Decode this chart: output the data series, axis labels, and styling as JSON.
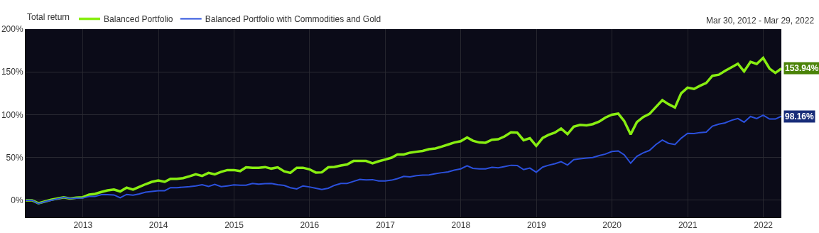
{
  "chart_data": {
    "type": "line",
    "legend_title": "Total return",
    "annotations": [
      "Mar 30, 2012 - Mar 29, 2022"
    ],
    "x": [
      "2012-03-30",
      "2012-04-30",
      "2012-05-31",
      "2012-06-30",
      "2012-07-31",
      "2012-08-31",
      "2012-09-30",
      "2012-10-31",
      "2012-11-30",
      "2012-12-31",
      "2013-01-31",
      "2013-02-28",
      "2013-03-31",
      "2013-04-30",
      "2013-05-31",
      "2013-06-30",
      "2013-07-31",
      "2013-08-31",
      "2013-09-30",
      "2013-10-31",
      "2013-11-30",
      "2013-12-31",
      "2014-01-31",
      "2014-02-28",
      "2014-03-31",
      "2014-04-30",
      "2014-05-31",
      "2014-06-30",
      "2014-07-31",
      "2014-08-31",
      "2014-09-30",
      "2014-10-31",
      "2014-11-30",
      "2014-12-31",
      "2015-01-31",
      "2015-02-28",
      "2015-03-31",
      "2015-04-30",
      "2015-05-31",
      "2015-06-30",
      "2015-07-31",
      "2015-08-31",
      "2015-09-30",
      "2015-10-31",
      "2015-11-30",
      "2015-12-31",
      "2016-01-31",
      "2016-02-29",
      "2016-03-31",
      "2016-04-30",
      "2016-05-31",
      "2016-06-30",
      "2016-07-31",
      "2016-08-31",
      "2016-09-30",
      "2016-10-31",
      "2016-11-30",
      "2016-12-31",
      "2017-01-31",
      "2017-02-28",
      "2017-03-31",
      "2017-04-30",
      "2017-05-31",
      "2017-06-30",
      "2017-07-31",
      "2017-08-31",
      "2017-09-30",
      "2017-10-31",
      "2017-11-30",
      "2017-12-31",
      "2018-01-31",
      "2018-02-28",
      "2018-03-31",
      "2018-04-30",
      "2018-05-31",
      "2018-06-30",
      "2018-07-31",
      "2018-08-31",
      "2018-09-30",
      "2018-10-31",
      "2018-11-30",
      "2018-12-31",
      "2019-01-31",
      "2019-02-28",
      "2019-03-31",
      "2019-04-30",
      "2019-05-31",
      "2019-06-30",
      "2019-07-31",
      "2019-08-31",
      "2019-09-30",
      "2019-10-31",
      "2019-11-30",
      "2019-12-31",
      "2020-01-31",
      "2020-02-29",
      "2020-03-31",
      "2020-04-30",
      "2020-05-31",
      "2020-06-30",
      "2020-07-31",
      "2020-08-31",
      "2020-09-30",
      "2020-10-31",
      "2020-11-30",
      "2020-12-31",
      "2021-01-31",
      "2021-02-28",
      "2021-03-31",
      "2021-04-30",
      "2021-05-31",
      "2021-06-30",
      "2021-07-31",
      "2021-08-31",
      "2021-09-30",
      "2021-10-31",
      "2021-11-30",
      "2021-12-31",
      "2022-01-31",
      "2022-02-28",
      "2022-03-29"
    ],
    "series": [
      {
        "name": "Balanced Portfolio",
        "color": "#88ee11",
        "values": [
          0,
          0,
          -3.5,
          -1.5,
          0.6,
          2,
          3.5,
          2,
          3,
          3.5,
          6.5,
          7.4,
          9.7,
          11.5,
          12.6,
          10.3,
          14.7,
          12.4,
          15.6,
          18.8,
          21.5,
          23.2,
          21.5,
          25,
          25,
          25.9,
          28,
          30.3,
          28.5,
          32,
          30.3,
          33.2,
          35.3,
          35.3,
          34.1,
          38.5,
          38,
          38,
          38.8,
          37,
          38.5,
          33.8,
          32,
          38,
          38,
          36.2,
          32.4,
          32.6,
          38.5,
          39,
          40.6,
          41.8,
          45.9,
          45.9,
          45.9,
          43.2,
          45.6,
          47.6,
          49.7,
          53.5,
          53.5,
          55.6,
          56.7,
          57.6,
          59.7,
          60.6,
          62.7,
          65.1,
          67.5,
          69,
          73.4,
          69.6,
          67.5,
          67.2,
          70.7,
          71.3,
          74.6,
          79.4,
          79.1,
          70.1,
          72.5,
          63.6,
          72.8,
          76.4,
          79.1,
          83.9,
          77.3,
          86,
          88.1,
          87.5,
          89,
          91.9,
          96.7,
          100,
          101.2,
          92.5,
          77,
          91.3,
          97.3,
          100.9,
          109,
          116.9,
          112.3,
          108.4,
          125,
          131.6,
          130.1,
          133.7,
          137,
          145.5,
          146.7,
          151.2,
          155.4,
          159.6,
          150.6,
          161.7,
          159.3,
          166.3,
          153.9,
          148.8,
          153.94
        ],
        "value_labels": [
          null,
          null,
          null,
          null,
          null,
          null,
          null,
          null,
          null,
          null,
          null,
          null,
          null,
          null,
          null,
          null,
          null,
          null,
          null,
          null,
          null,
          null,
          null,
          null,
          null,
          null,
          null,
          null,
          null,
          null,
          null,
          null,
          null,
          null,
          null,
          null,
          null,
          null,
          null,
          null,
          null,
          null,
          null,
          null,
          null,
          null,
          null,
          null,
          null,
          null,
          null,
          null,
          null,
          null,
          null,
          null,
          null,
          null,
          null,
          null,
          null,
          null,
          null,
          null,
          null,
          null,
          null,
          null,
          null,
          null,
          null,
          null,
          null,
          null,
          null,
          null,
          null,
          null,
          null,
          null,
          null,
          null,
          null,
          null,
          null,
          null,
          null,
          null,
          null,
          null,
          null,
          null,
          null,
          null,
          null,
          null,
          null,
          null,
          null,
          null,
          null,
          null,
          null,
          null,
          null,
          null,
          null,
          null,
          null,
          null,
          null,
          null,
          null,
          null,
          null,
          null,
          null,
          null,
          null,
          null,
          "153.94%"
        ]
      },
      {
        "name": "Balanced Portfolio with Commodities and Gold",
        "color": "#2b50dc",
        "values": [
          0,
          0,
          -4,
          -1.8,
          0,
          1.5,
          3.5,
          2,
          2.4,
          2.6,
          4.4,
          4.4,
          6.5,
          6.5,
          6.2,
          2.9,
          6.8,
          5.9,
          7.4,
          9.4,
          10.3,
          11.2,
          11.2,
          14.7,
          14.7,
          15.3,
          15.9,
          16.8,
          18.2,
          16.2,
          18.5,
          15.9,
          16.8,
          17.9,
          17.6,
          17.6,
          19.7,
          18.8,
          19.4,
          19.7,
          18.2,
          17.4,
          14.7,
          13.2,
          16.8,
          15.6,
          14.1,
          12.6,
          14.1,
          17.4,
          19.7,
          19.7,
          22,
          24.4,
          23.8,
          24.1,
          22.6,
          22.6,
          23.5,
          25.3,
          27.9,
          27.4,
          28.7,
          29.3,
          29.6,
          31,
          32.2,
          33.1,
          35.2,
          36.7,
          40.3,
          37.3,
          36.7,
          36.7,
          38.5,
          37.9,
          39.4,
          40.9,
          40.6,
          35.8,
          37.6,
          32.8,
          38.8,
          40.9,
          42.7,
          45.1,
          41.2,
          47.5,
          48.4,
          49.3,
          49.9,
          52.2,
          54,
          57,
          57.6,
          53.1,
          43.3,
          51.3,
          55.5,
          58.2,
          65.1,
          70.4,
          66.6,
          65.1,
          72.5,
          78.2,
          77.9,
          79.1,
          79.7,
          86.6,
          89,
          90.4,
          93.4,
          95.5,
          91.3,
          97.9,
          95.5,
          99.4,
          94.9,
          94.9,
          98.16
        ],
        "value_labels": [
          null,
          null,
          null,
          null,
          null,
          null,
          null,
          null,
          null,
          null,
          null,
          null,
          null,
          null,
          null,
          null,
          null,
          null,
          null,
          null,
          null,
          null,
          null,
          null,
          null,
          null,
          null,
          null,
          null,
          null,
          null,
          null,
          null,
          null,
          null,
          null,
          null,
          null,
          null,
          null,
          null,
          null,
          null,
          null,
          null,
          null,
          null,
          null,
          null,
          null,
          null,
          null,
          null,
          null,
          null,
          null,
          null,
          null,
          null,
          null,
          null,
          null,
          null,
          null,
          null,
          null,
          null,
          null,
          null,
          null,
          null,
          null,
          null,
          null,
          null,
          null,
          null,
          null,
          null,
          null,
          null,
          null,
          null,
          null,
          null,
          null,
          null,
          null,
          null,
          null,
          null,
          null,
          null,
          null,
          null,
          null,
          null,
          null,
          null,
          null,
          null,
          null,
          null,
          null,
          null,
          null,
          null,
          null,
          null,
          null,
          null,
          null,
          null,
          null,
          null,
          null,
          null,
          null,
          null,
          null,
          "98.16%"
        ]
      }
    ],
    "xlim": [
      "2012-03-30",
      "2022-03-29"
    ],
    "xticks": [
      "2013",
      "2014",
      "2015",
      "2016",
      "2017",
      "2018",
      "2019",
      "2020",
      "2021",
      "2022"
    ],
    "ylim": [
      -20,
      200
    ],
    "yticks": [
      {
        "value": 0,
        "label": "0%"
      },
      {
        "value": 50,
        "label": "50%"
      },
      {
        "value": 100,
        "label": "100%"
      },
      {
        "value": 150,
        "label": "150%"
      },
      {
        "value": 200,
        "label": "200%"
      }
    ],
    "grid": true,
    "legend": "top left",
    "marker": "none",
    "line_style": "solid"
  }
}
